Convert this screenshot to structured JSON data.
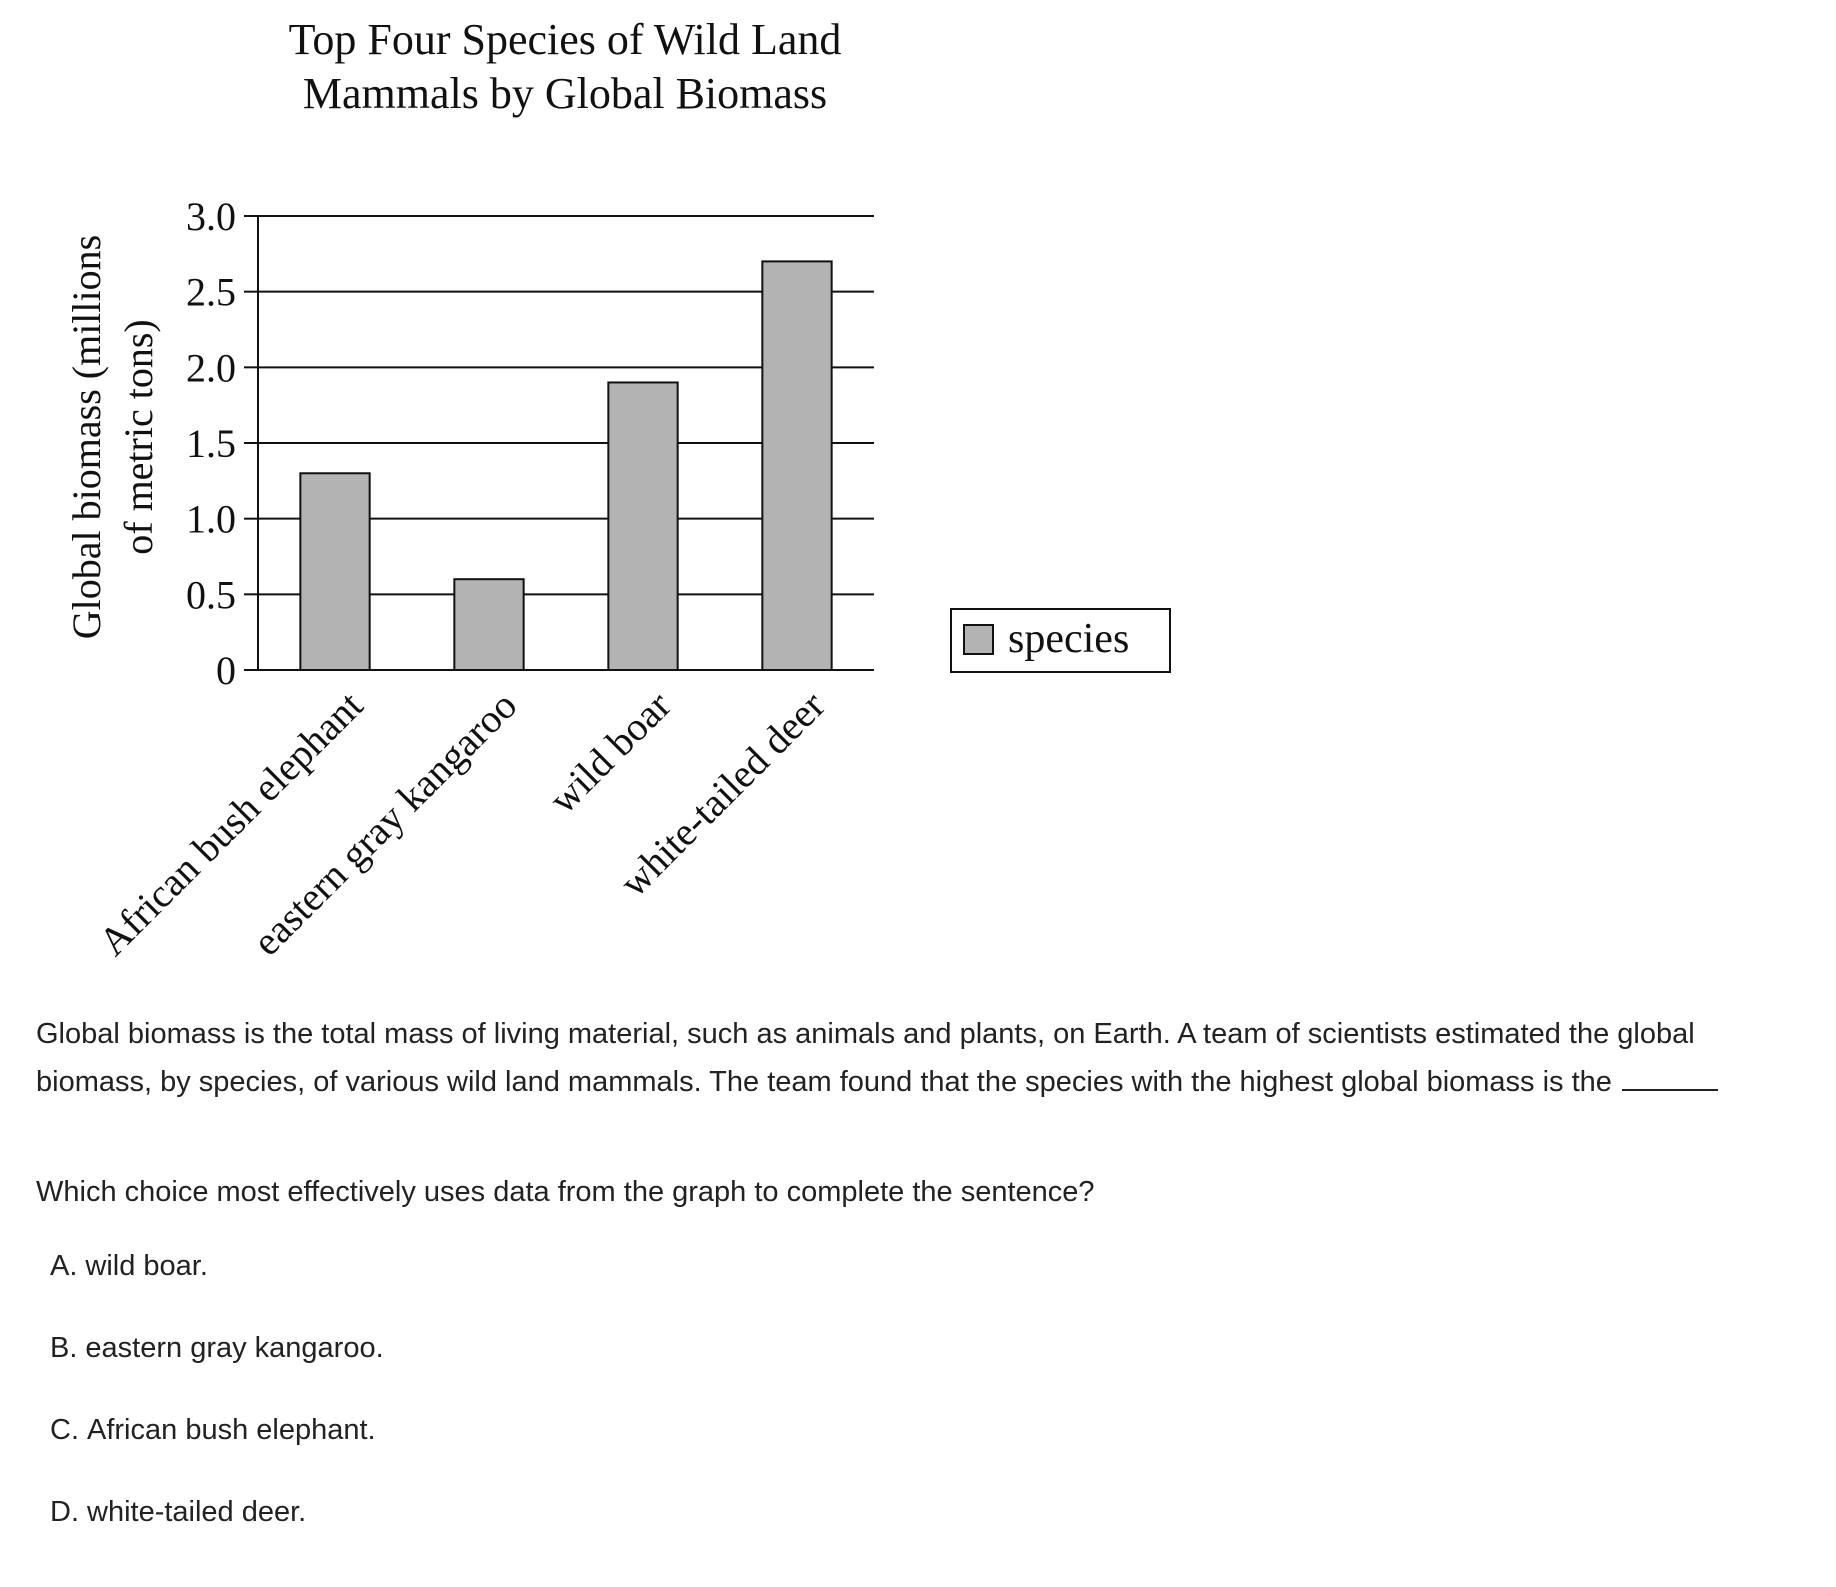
{
  "chart_data": {
    "type": "bar",
    "title": "Top Four Species of Wild Land Mammals by Global Biomass",
    "title_lines": [
      "Top Four Species of Wild Land",
      "Mammals by Global Biomass"
    ],
    "ylabel": "Global biomass (millions of metric tons)",
    "ylabel_lines": [
      "Global biomass (millions",
      "of metric tons)"
    ],
    "xlabel": "",
    "categories": [
      "African bush elephant",
      "eastern gray kangaroo",
      "wild boar",
      "white-tailed deer"
    ],
    "series": [
      {
        "name": "species",
        "values": [
          1.3,
          0.6,
          1.9,
          2.7
        ],
        "color": "#b3b3b3"
      }
    ],
    "ylim": [
      0,
      3.0
    ],
    "yticks": [
      0,
      0.5,
      1.0,
      1.5,
      2.0,
      2.5,
      3.0
    ],
    "ytick_labels": [
      "0",
      "0.5",
      "1.0",
      "1.5",
      "2.0",
      "2.5",
      "3.0"
    ],
    "grid": true,
    "legend_position": "right"
  },
  "question": {
    "passage": "Global biomass is the total mass of living material, such as animals and plants, on Earth. A team of scientists estimated the global biomass, by species, of various wild land mammals. The team found that the species with the highest global biomass is the",
    "prompt": "Which choice most effectively uses data from the graph to complete the sentence?",
    "choices": [
      {
        "letter": "A.",
        "text": "wild boar."
      },
      {
        "letter": "B.",
        "text": "eastern gray kangaroo."
      },
      {
        "letter": "C.",
        "text": "African bush elephant."
      },
      {
        "letter": "D.",
        "text": "white-tailed deer."
      }
    ]
  }
}
